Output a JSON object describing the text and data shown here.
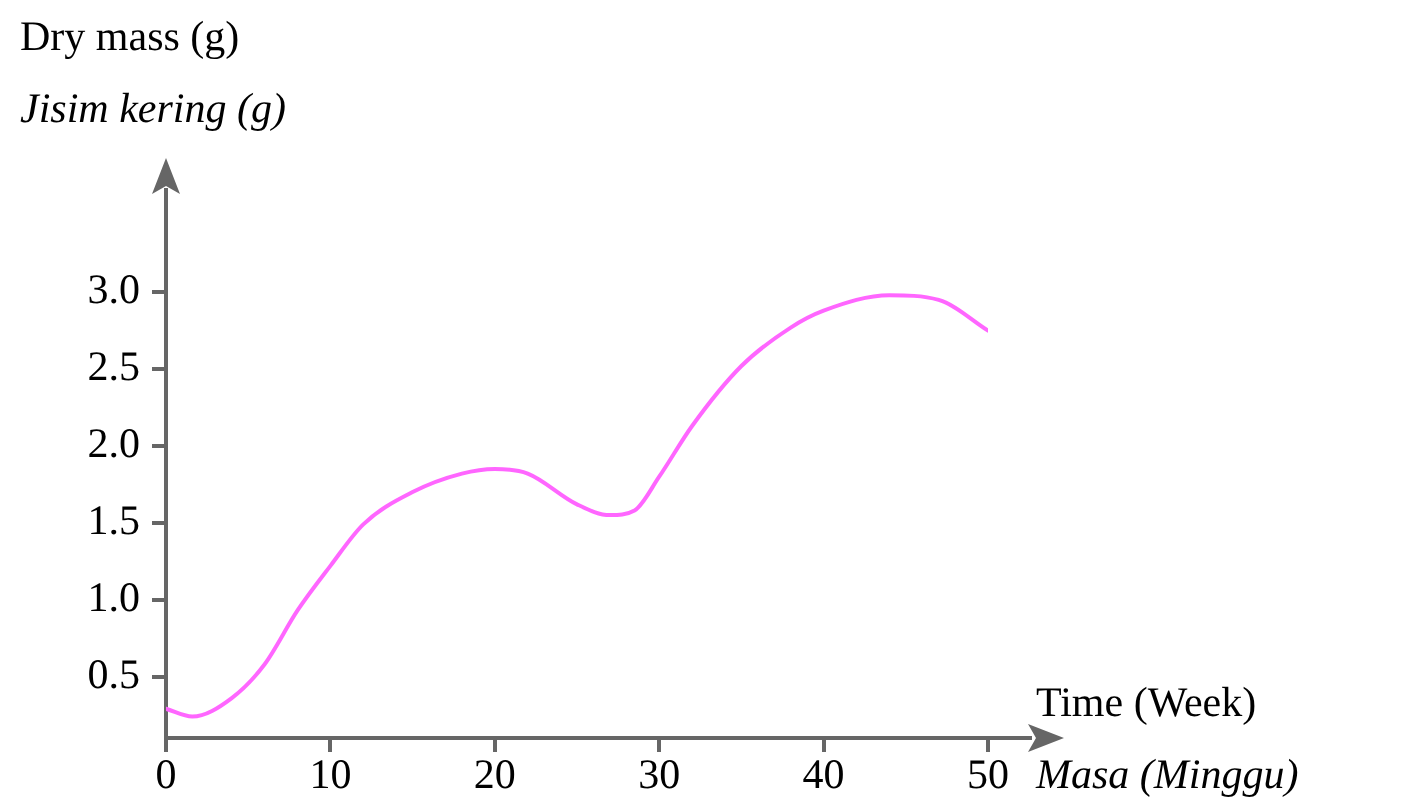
{
  "chart_data": {
    "type": "line",
    "xlabel": "Time (Week)\nMasa (Minggu)",
    "ylabel": "Dry mass (g)\nJisim kering (g)",
    "x": [
      0,
      1.6,
      4,
      6,
      8,
      10,
      12,
      15,
      18,
      20,
      22,
      25,
      27,
      28.5,
      30,
      32,
      35,
      38,
      40,
      44,
      47,
      50
    ],
    "series": [
      {
        "color": "#ff66ff",
        "values": [
          0.29,
          0.24,
          0.36,
          0.58,
          0.93,
          1.22,
          1.49,
          1.7,
          1.82,
          1.85,
          1.82,
          1.62,
          1.55,
          1.58,
          1.8,
          2.13,
          2.52,
          2.77,
          2.88,
          2.98,
          2.95,
          2.75
        ]
      }
    ],
    "xlim": [
      0,
      50
    ],
    "xticks": [
      0,
      10,
      20,
      30,
      40,
      50
    ],
    "ylim": [
      0.1,
      3.6
    ],
    "yticks": [
      0.5,
      {
        "value": 1,
        "label": "1.0"
      },
      1.5,
      {
        "value": 2,
        "label": "2.0"
      },
      2.5,
      {
        "value": 3,
        "label": "3.0"
      }
    ],
    "grid": false,
    "legend": false,
    "marker": "none",
    "line_style": "solid"
  }
}
